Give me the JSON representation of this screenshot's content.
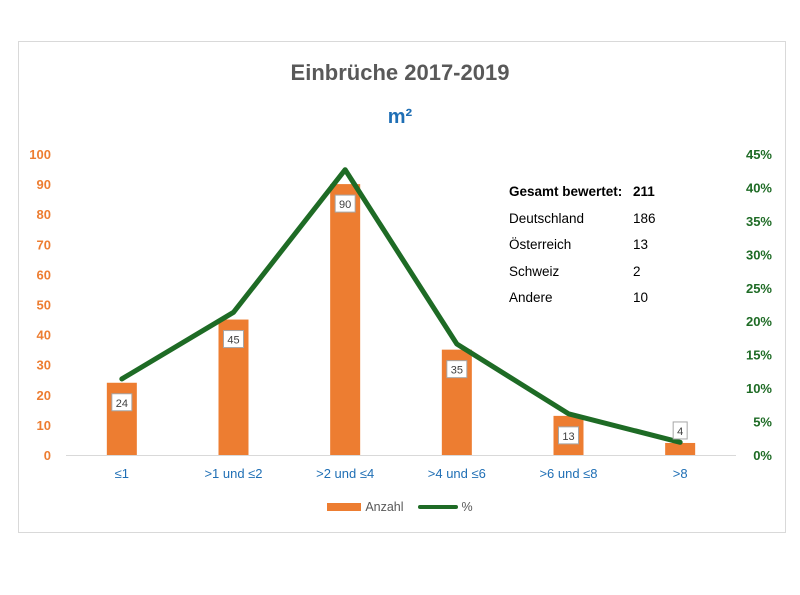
{
  "chart_data": {
    "type": "bar",
    "title": "Einbrüche 2017-2019",
    "subtitle": "m²",
    "categories": [
      "≤1",
      ">1 und ≤2",
      ">2 und ≤4",
      ">4 und ≤6",
      ">6 und ≤8",
      ">8"
    ],
    "series": [
      {
        "name": "Anzahl",
        "type": "bar",
        "axis": "left",
        "color": "#ed7d31",
        "values": [
          24,
          45,
          90,
          35,
          13,
          4
        ]
      },
      {
        "name": "%",
        "type": "line",
        "axis": "right",
        "color": "#1e6b25",
        "values": [
          11.37,
          21.33,
          42.65,
          16.59,
          6.16,
          1.9
        ]
      }
    ],
    "ylim_left": [
      0,
      100
    ],
    "ylim_right": [
      0,
      45
    ],
    "left_ticks": [
      "0",
      "10",
      "20",
      "30",
      "40",
      "50",
      "60",
      "70",
      "80",
      "90",
      "100"
    ],
    "right_ticks": [
      "0%",
      "5%",
      "10%",
      "15%",
      "20%",
      "25%",
      "30%",
      "35%",
      "40%",
      "45%"
    ],
    "data_labels": [
      "24",
      "45",
      "90",
      "35",
      "13",
      "4"
    ],
    "legend_position": "bottom",
    "grid": false,
    "colors": {
      "left_axis": "#ed7d31",
      "right_axis": "#1e6b25",
      "category_axis": "#1f6fb5",
      "title": "#595959",
      "subtitle": "#1f6fb5"
    }
  },
  "summary": {
    "rows": [
      {
        "label": "Gesamt bewertet:",
        "value": "211"
      },
      {
        "label": "Deutschland",
        "value": "186"
      },
      {
        "label": "Österreich",
        "value": "13"
      },
      {
        "label": "Schweiz",
        "value": "2"
      },
      {
        "label": "Andere",
        "value": "10"
      }
    ]
  },
  "legend": {
    "bar_label": "Anzahl",
    "line_label": "%"
  }
}
